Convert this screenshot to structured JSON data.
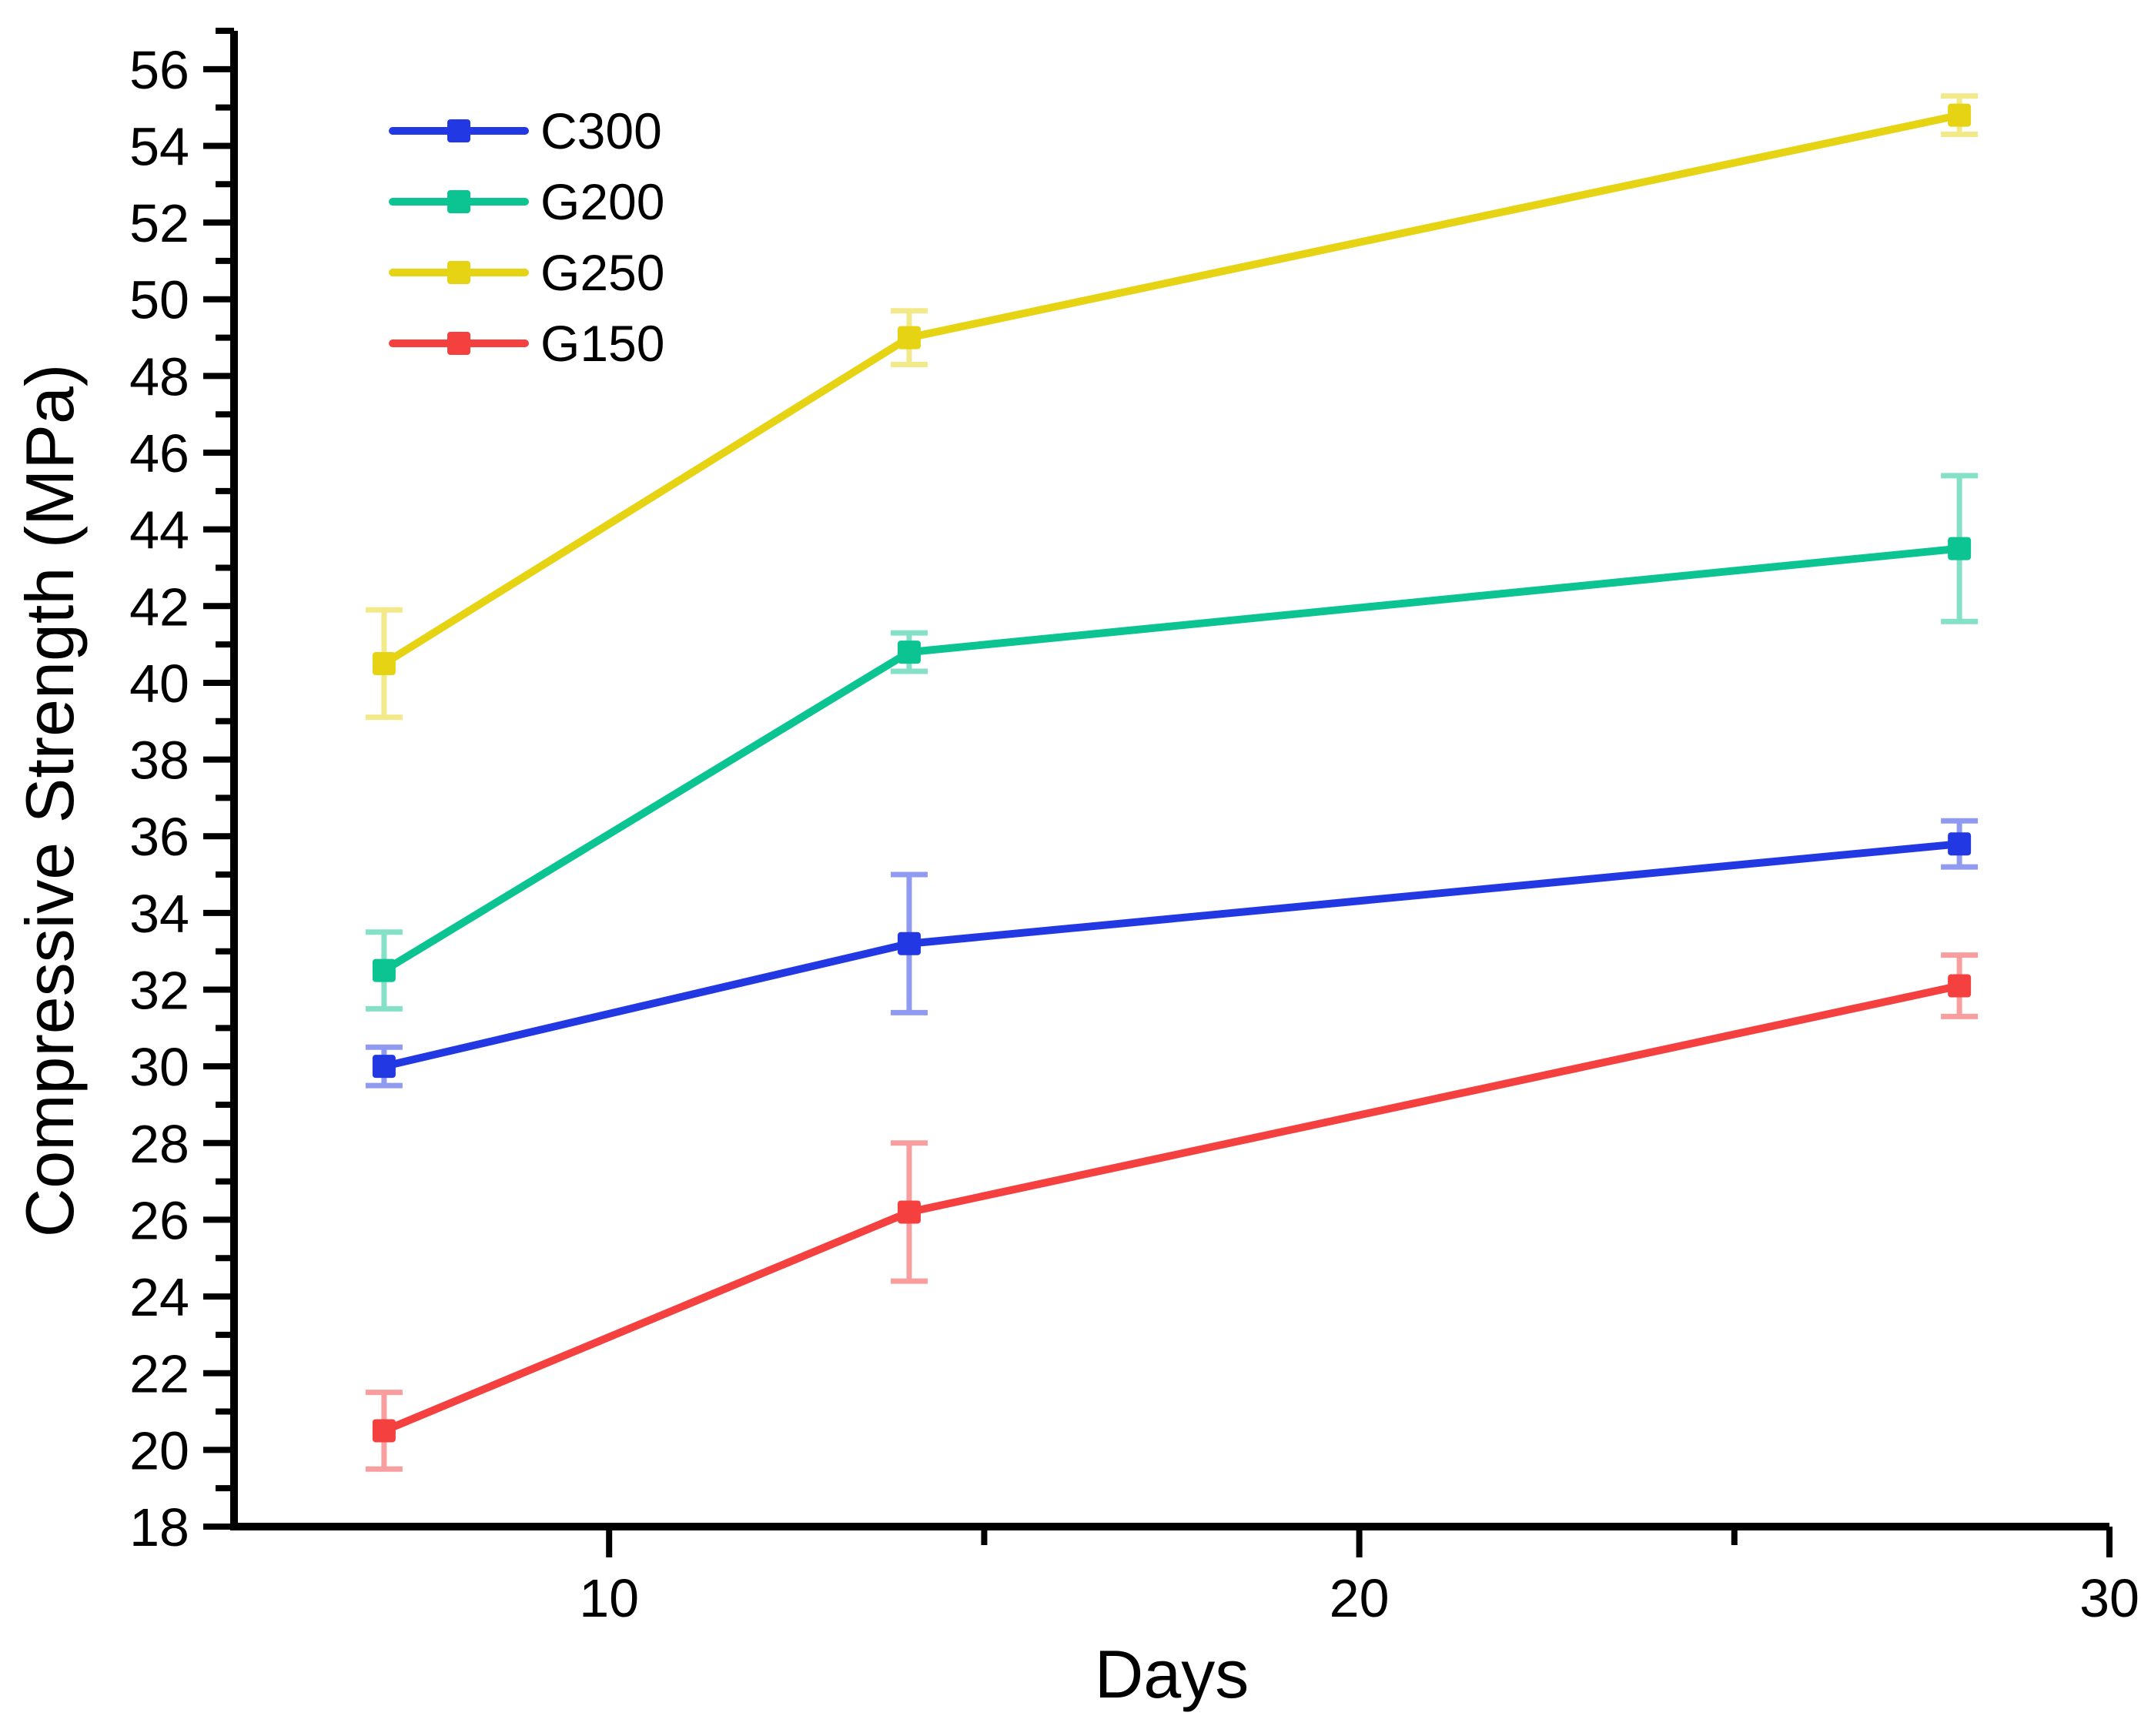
{
  "chart_data": {
    "type": "line",
    "title": "",
    "xlabel": "Days",
    "ylabel": "Compressive Strength (MPa)",
    "x": [
      7,
      14,
      28
    ],
    "xlim": [
      5,
      30
    ],
    "ylim": [
      18,
      57
    ],
    "x_major_ticks": [
      10,
      20,
      30
    ],
    "x_minor_ticks": [
      15,
      25
    ],
    "y_major_tick_min": 18,
    "y_major_tick_max": 56,
    "y_major_tick_step": 2,
    "y_minor_tick_min": 19,
    "y_minor_tick_max": 57,
    "y_minor_tick_step": 2,
    "grid": false,
    "legend_position": "inside-top-left",
    "axis_color": "#000000",
    "marker_shape": "square",
    "series": [
      {
        "name": "C300",
        "color": "#2238e3",
        "values": [
          30.0,
          33.2,
          35.8
        ],
        "errors": [
          0.5,
          1.8,
          0.6
        ]
      },
      {
        "name": "G200",
        "color": "#0bc492",
        "values": [
          32.5,
          40.8,
          43.5
        ],
        "errors": [
          1.0,
          0.5,
          1.9
        ]
      },
      {
        "name": "G250",
        "color": "#e6d414",
        "values": [
          40.5,
          49.0,
          54.8
        ],
        "errors": [
          1.4,
          0.7,
          0.5
        ]
      },
      {
        "name": "G150",
        "color": "#f4403f",
        "values": [
          20.5,
          26.2,
          32.1
        ],
        "errors": [
          1.0,
          1.8,
          0.8
        ]
      }
    ]
  }
}
